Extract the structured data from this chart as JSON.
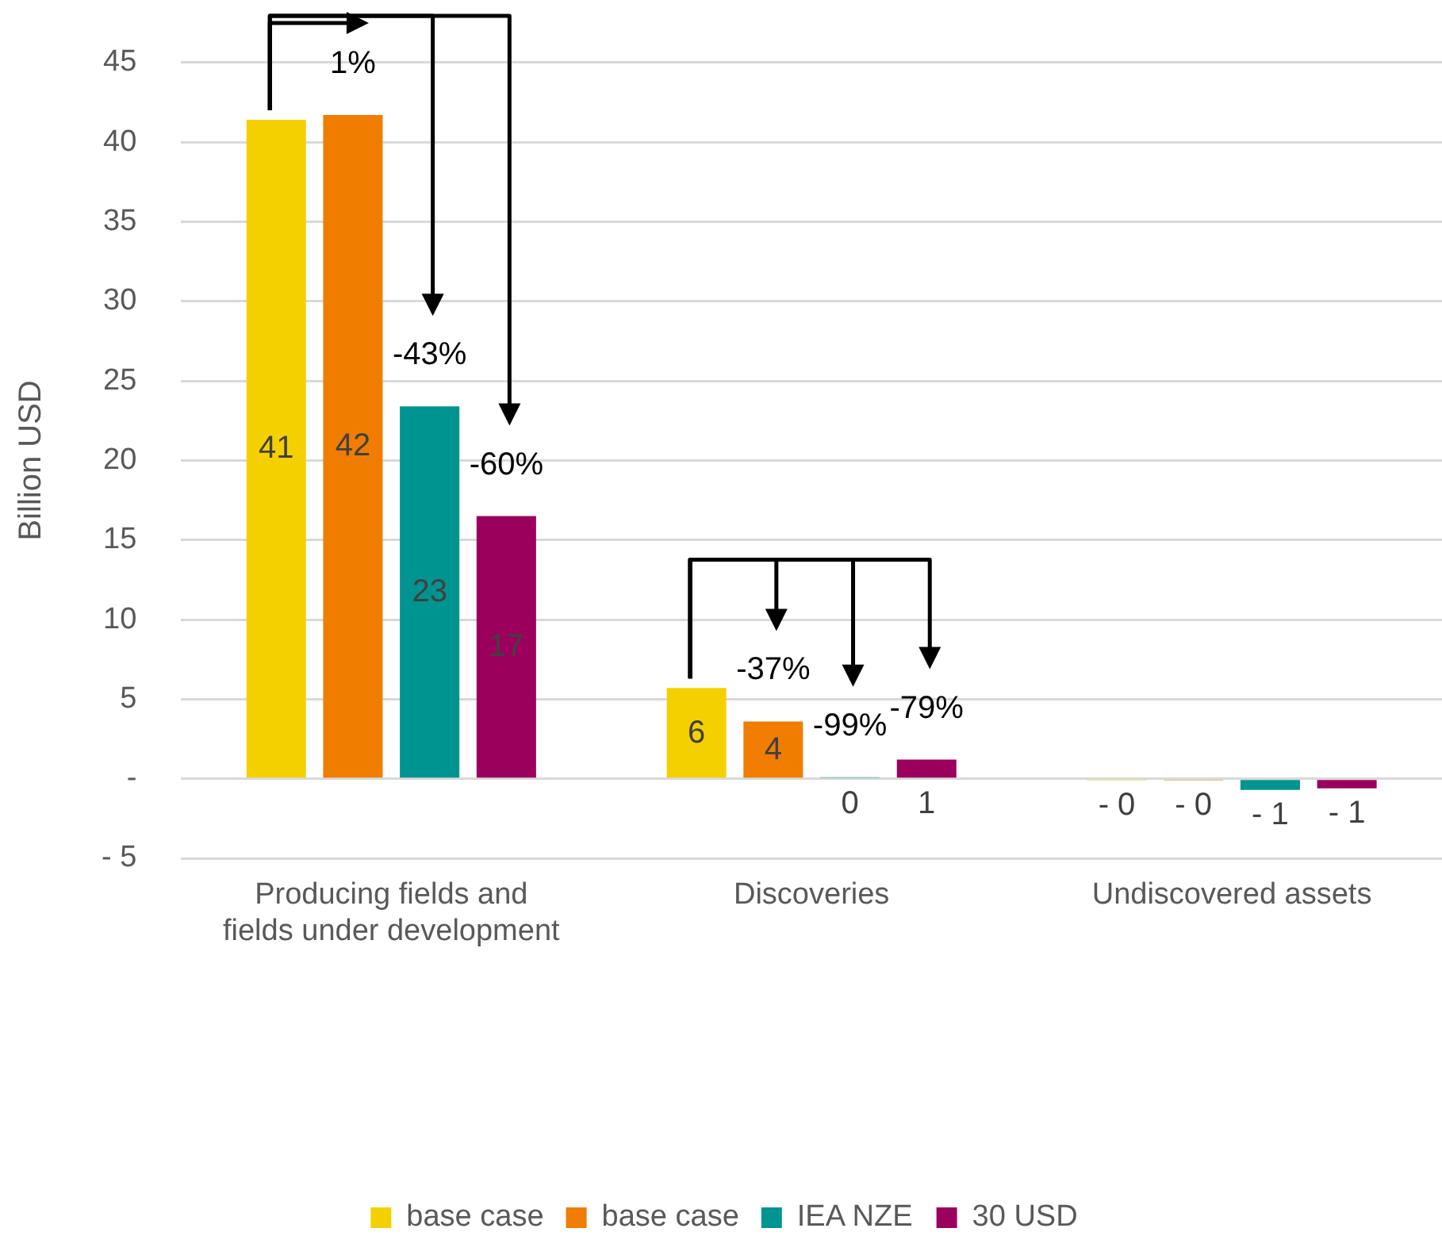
{
  "chart_data": {
    "type": "bar",
    "ylabel": "Billion USD",
    "categories": [
      "Producing fields and fields under development",
      "Discoveries",
      "Undiscovered assets"
    ],
    "series": [
      {
        "name": "base case",
        "color": "#f5d000",
        "values": [
          41.4,
          5.7,
          -0.1
        ],
        "value_labels": [
          "41",
          "6",
          "- 0"
        ]
      },
      {
        "name": "base case",
        "color": "#f07d00",
        "values": [
          41.7,
          3.6,
          -0.1
        ],
        "value_labels": [
          "42",
          "4",
          "- 0"
        ]
      },
      {
        "name": "IEA NZE",
        "color": "#009490",
        "values": [
          23.4,
          0.1,
          -0.7
        ],
        "value_labels": [
          "23",
          "0",
          "- 1"
        ]
      },
      {
        "name": "30 USD",
        "color": "#9c005d",
        "values": [
          16.5,
          1.2,
          -0.6
        ],
        "value_labels": [
          "17",
          "1",
          "- 1"
        ]
      }
    ],
    "ylim": [
      -5,
      45
    ],
    "yticks": [
      {
        "value": -5,
        "label": "- 5"
      },
      {
        "value": 0,
        "label": "-"
      },
      5,
      10,
      15,
      20,
      25,
      30,
      35,
      40,
      45
    ],
    "grid": "y",
    "legend": "bottom",
    "annotations": [
      "1%",
      "-43%",
      "-60%",
      "-37%",
      "-99%",
      "-79%"
    ]
  }
}
